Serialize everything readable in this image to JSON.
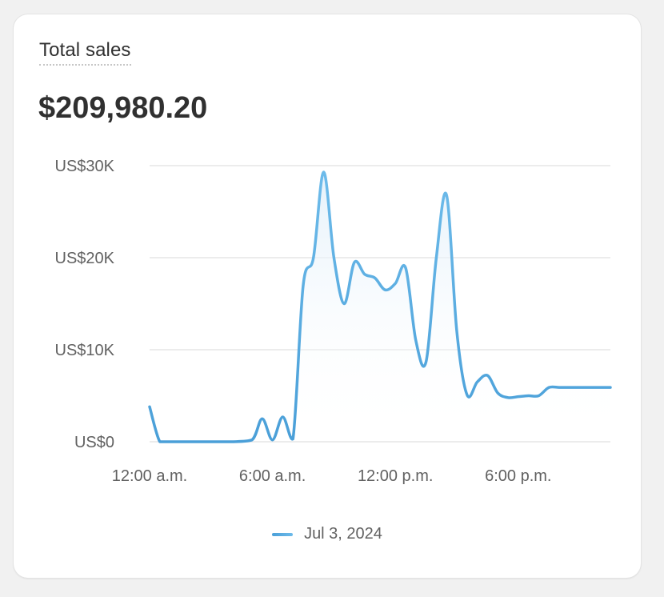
{
  "card": {
    "title": "Total sales",
    "total_value": "$209,980.20"
  },
  "colors": {
    "line": "#4a9fd8",
    "line_highlight": "#6dbbea",
    "area_fill": "#eaf4fb",
    "grid": "#e6e6e6",
    "text": "#303030",
    "muted_text": "#616161"
  },
  "chart_data": {
    "type": "line",
    "title": "Total sales",
    "xlabel": "",
    "ylabel": "",
    "ylim": [
      0,
      30000
    ],
    "y_ticks": [
      {
        "value": 0,
        "label": "US$0"
      },
      {
        "value": 10000,
        "label": "US$10K"
      },
      {
        "value": 20000,
        "label": "US$20K"
      },
      {
        "value": 30000,
        "label": "US$30K"
      }
    ],
    "x_ticks": [
      {
        "hour": 0,
        "label": "12:00 a.m."
      },
      {
        "hour": 6,
        "label": "6:00 a.m."
      },
      {
        "hour": 12,
        "label": "12:00 p.m."
      },
      {
        "hour": 18,
        "label": "6:00 p.m."
      }
    ],
    "xlim": [
      0,
      22.5
    ],
    "grid": true,
    "legend_position": "bottom-center",
    "series": [
      {
        "name": "Jul 3, 2024",
        "x": [
          0,
          0.5,
          1,
          2,
          3,
          4,
          5,
          5.5,
          6,
          6.5,
          7,
          7.5,
          8,
          8.5,
          9,
          9.5,
          10,
          10.5,
          11,
          11.5,
          12,
          12.5,
          13,
          13.5,
          14,
          14.5,
          15,
          15.5,
          16,
          16.5,
          17,
          17.5,
          18,
          18.5,
          19,
          19.5,
          20,
          20.5,
          21,
          21.5,
          22,
          22.5
        ],
        "values": [
          3800,
          0,
          0,
          0,
          0,
          0,
          200,
          2500,
          200,
          2700,
          300,
          17000,
          20000,
          29300,
          20000,
          15000,
          19500,
          18200,
          17800,
          16500,
          17200,
          18900,
          11000,
          8700,
          20000,
          26800,
          12000,
          5100,
          6500,
          7200,
          5300,
          4800,
          4900,
          5000,
          5000,
          5900,
          5900,
          5900,
          5900,
          5900,
          5900,
          5900
        ]
      }
    ]
  },
  "legend": {
    "label": "Jul 3, 2024"
  }
}
